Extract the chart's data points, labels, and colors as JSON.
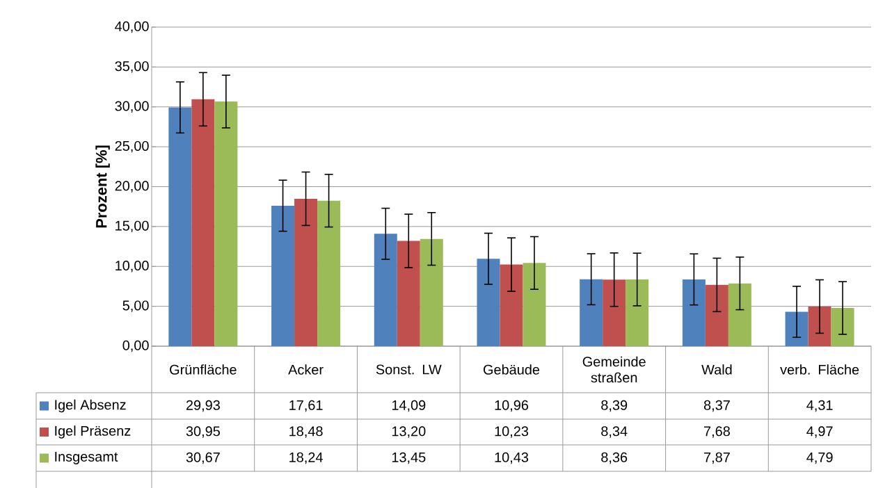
{
  "chart_data": {
    "type": "bar",
    "ylabel": "Prozent [%]",
    "categories": [
      "Grünfläche",
      "Acker",
      "Sonst. LW",
      "Gebäude",
      "Gemeinde straßen",
      "Wald",
      "verb. Fläche"
    ],
    "series": [
      {
        "name": "Igel Absenz",
        "color": "#4f81bd",
        "values": [
          29.93,
          17.61,
          14.09,
          10.96,
          8.39,
          8.37,
          4.31
        ],
        "errors": [
          3.2,
          3.2,
          3.2,
          3.2,
          3.2,
          3.2,
          3.2
        ],
        "value_labels": [
          "29,93",
          "17,61",
          "14,09",
          "10,96",
          "8,39",
          "8,37",
          "4,31"
        ]
      },
      {
        "name": "Igel Präsenz",
        "color": "#c0504d",
        "values": [
          30.95,
          18.48,
          13.2,
          10.23,
          8.34,
          7.68,
          4.97
        ],
        "errors": [
          3.35,
          3.35,
          3.35,
          3.35,
          3.35,
          3.35,
          3.35
        ],
        "value_labels": [
          "30,95",
          "18,48",
          "13,20",
          "10,23",
          "8,34",
          "7,68",
          "4,97"
        ]
      },
      {
        "name": "Insgesamt",
        "color": "#9bbb59",
        "values": [
          30.67,
          18.24,
          13.45,
          10.43,
          8.36,
          7.87,
          4.79
        ],
        "errors": [
          3.3,
          3.3,
          3.3,
          3.3,
          3.3,
          3.3,
          3.3
        ],
        "value_labels": [
          "30,67",
          "18,24",
          "13,45",
          "10,43",
          "8,36",
          "7,87",
          "4,79"
        ]
      }
    ],
    "ylim": [
      0,
      40
    ],
    "yticks": [
      {
        "value": 0,
        "label": "0,00"
      },
      {
        "value": 5,
        "label": "5,00"
      },
      {
        "value": 10,
        "label": "10,00"
      },
      {
        "value": 15,
        "label": "15,00"
      },
      {
        "value": 20,
        "label": "20,00"
      },
      {
        "value": 25,
        "label": "25,00"
      },
      {
        "value": 30,
        "label": "30,00"
      },
      {
        "value": 35,
        "label": "35,00"
      },
      {
        "value": 40,
        "label": "40,00"
      }
    ],
    "grid": "y",
    "legend": "bottom left"
  }
}
